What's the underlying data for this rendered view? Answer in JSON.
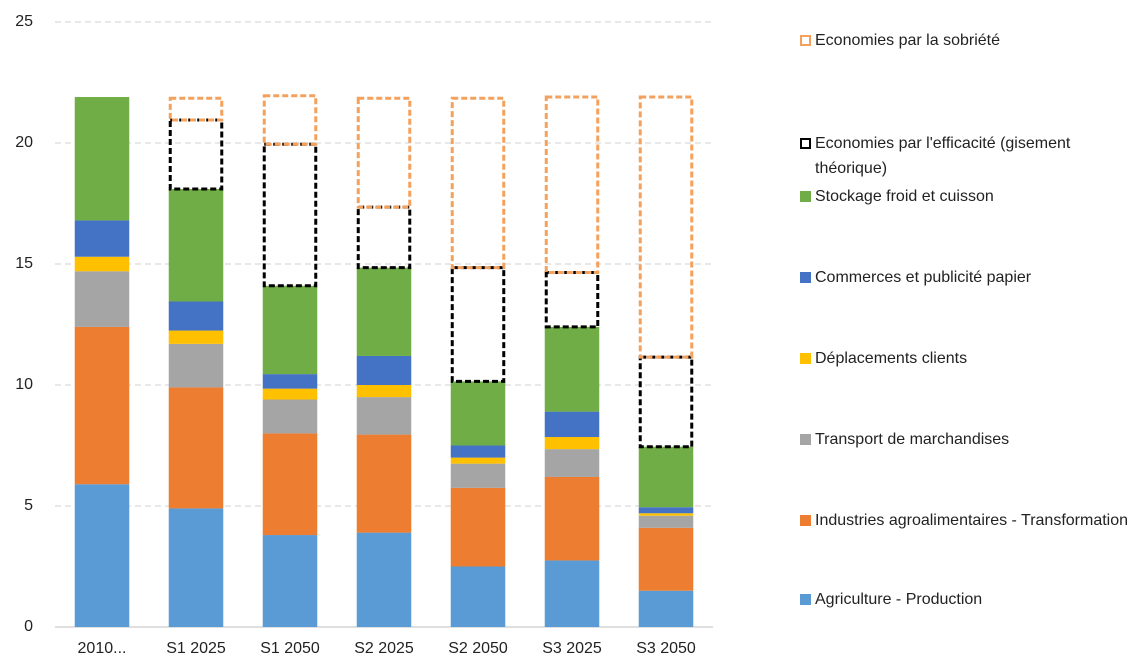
{
  "chart_data": {
    "type": "stacked_bar",
    "categories": [
      "2010...",
      "S1 2025",
      "S1 2050",
      "S2 2025",
      "S2 2050",
      "S3 2025",
      "S3 2050"
    ],
    "series": [
      {
        "name": "Agriculture - Production",
        "color": "#5b9bd5",
        "values": [
          5.9,
          4.9,
          3.8,
          3.9,
          2.5,
          2.75,
          1.5
        ]
      },
      {
        "name": "Industries agroalimentaires - Transformation",
        "color": "#ed7d31",
        "values": [
          6.5,
          5.0,
          4.2,
          4.05,
          3.25,
          3.45,
          2.6
        ]
      },
      {
        "name": "Transport de marchandises",
        "color": "#a5a5a5",
        "values": [
          2.3,
          1.8,
          1.4,
          1.55,
          1.0,
          1.15,
          0.5
        ]
      },
      {
        "name": "Déplacements clients",
        "color": "#ffc000",
        "values": [
          0.6,
          0.55,
          0.45,
          0.5,
          0.25,
          0.5,
          0.1
        ]
      },
      {
        "name": "Commerces et publicité papier",
        "color": "#4472c4",
        "values": [
          1.5,
          1.2,
          0.6,
          1.2,
          0.5,
          1.05,
          0.25
        ]
      },
      {
        "name": "Stockage froid et cuisson",
        "color": "#70ad47",
        "values": [
          5.1,
          4.65,
          3.65,
          3.65,
          2.65,
          3.5,
          2.5
        ]
      },
      {
        "name": "Economies par l'efficacité (gisement théorique)",
        "color": "#000000",
        "style": "dashed",
        "values": [
          0,
          2.85,
          5.85,
          2.5,
          4.7,
          2.25,
          3.7
        ]
      },
      {
        "name": "Economies par la sobriété",
        "color": "#f4a15d",
        "style": "dashed",
        "values": [
          0,
          0.9,
          2.0,
          4.5,
          7.0,
          7.25,
          10.75
        ]
      }
    ],
    "ylim": [
      0,
      25
    ],
    "yticks": [
      0,
      5,
      10,
      15,
      20,
      25
    ],
    "grid": true,
    "legend": "right"
  }
}
